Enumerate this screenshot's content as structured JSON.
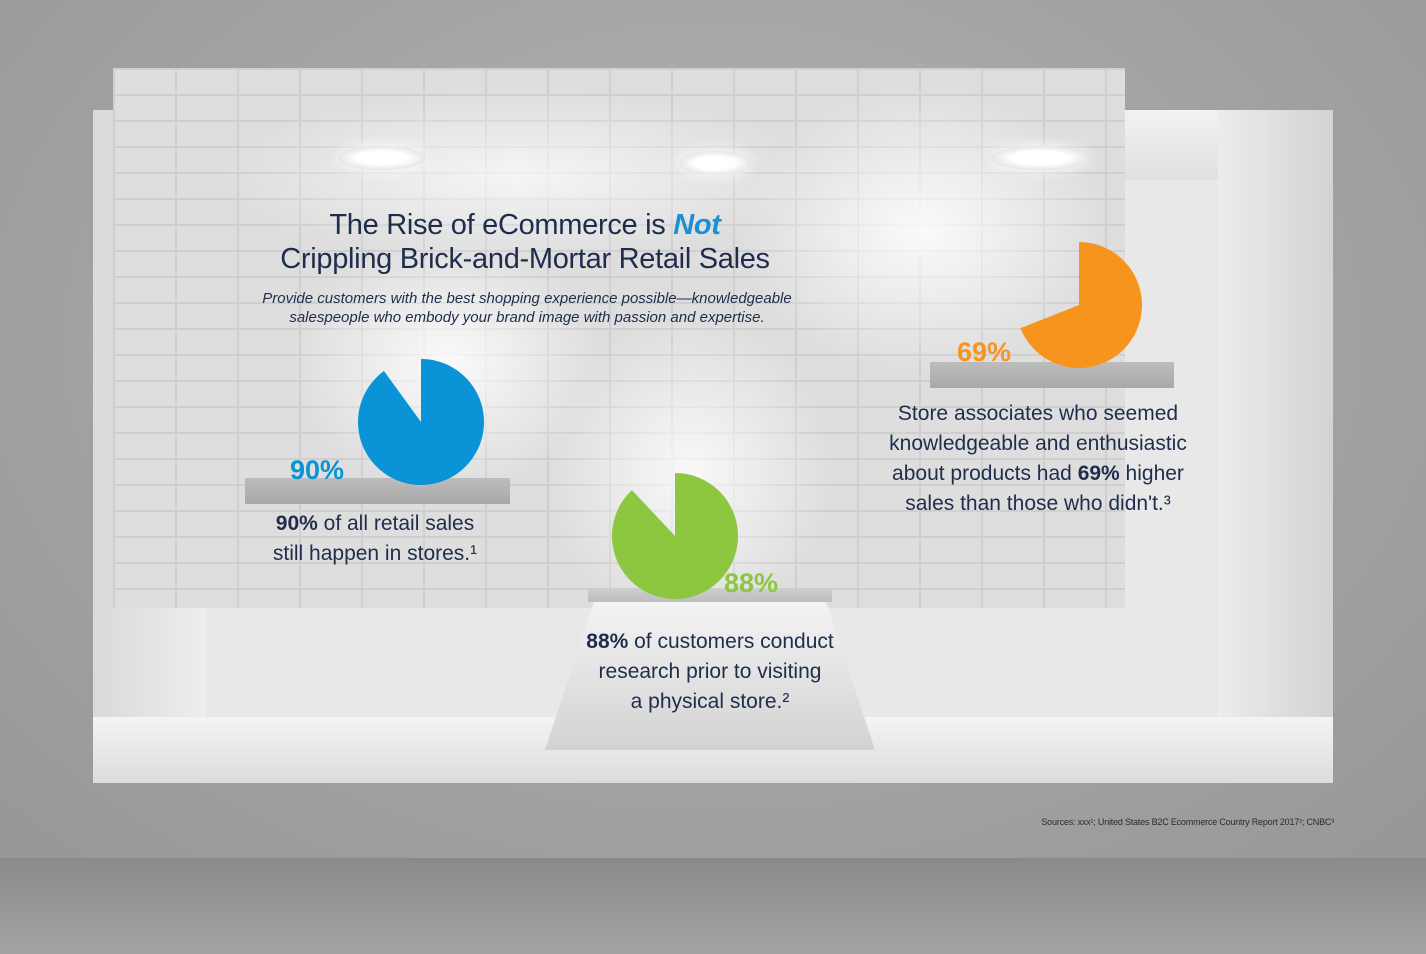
{
  "title": {
    "line1_pre": "The Rise of eCommerce is ",
    "line1_em": "Not",
    "line2": "Crippling Brick-and-Mortar Retail Sales"
  },
  "subtitle": {
    "line1": "Provide customers with the best shopping experience possible—knowledgeable",
    "line2": "salespeople who embody your brand image with passion and expertise."
  },
  "chart_data": [
    {
      "type": "pie",
      "label": "90%",
      "value": 90,
      "color": "#0a93d6",
      "caption_bold": "90%",
      "caption_rest": " of all retail sales",
      "caption_line2": "still happen in stores.¹"
    },
    {
      "type": "pie",
      "label": "88%",
      "value": 88,
      "color": "#8dc63f",
      "caption_bold": "88%",
      "caption_rest": " of customers conduct",
      "caption_line2": "research prior to visiting",
      "caption_line3": "a physical store.²"
    },
    {
      "type": "pie",
      "label": "69%",
      "value": 69,
      "color": "#f7941d",
      "caption_line1": "Store associates who seemed",
      "caption_line2": "knowledgeable and enthusiastic",
      "caption_line3_pre": "about products had ",
      "caption_line3_bold": "69%",
      "caption_line3_post": " higher",
      "caption_line4": "sales than those who didn't.³"
    }
  ],
  "sources": "Sources: xxx¹; United States B2C Ecommerce Country Report 2017²; CNBC³"
}
